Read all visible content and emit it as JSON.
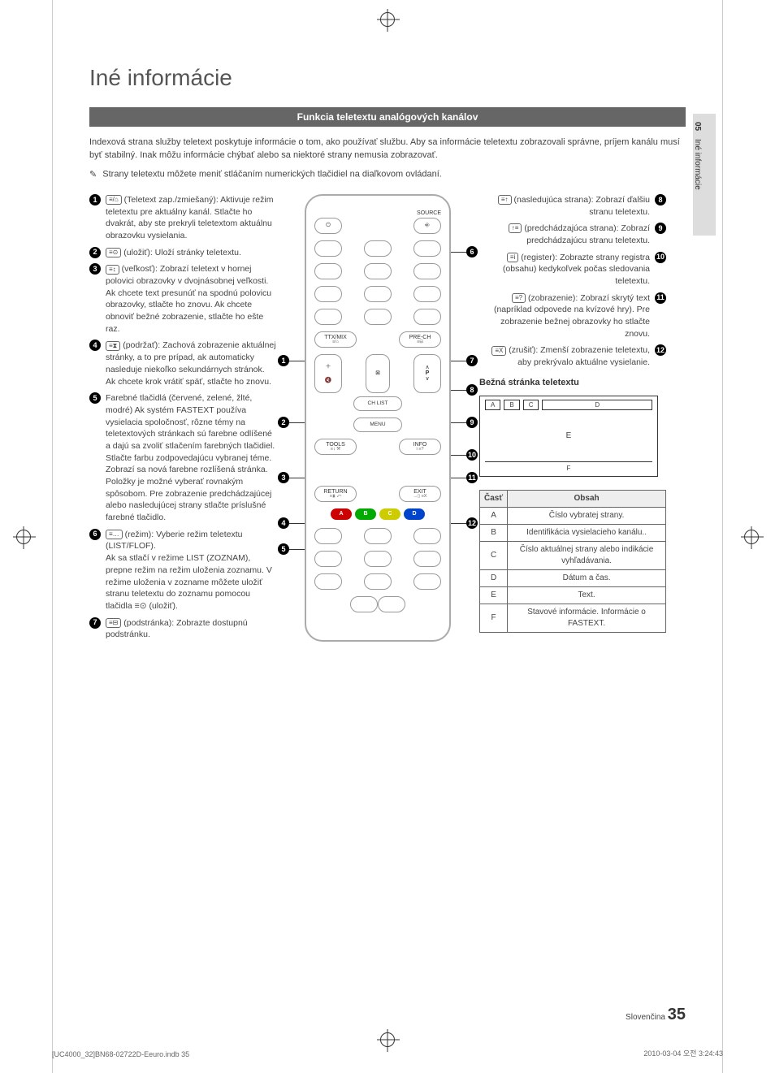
{
  "print": {
    "file": "[UC4000_32]BN68-02722D-Eeuro.indb   35",
    "date": "2010-03-04   오전 3:24:43"
  },
  "sidetab": {
    "num": "05",
    "label": "Iné informácie"
  },
  "title": "Iné informácie",
  "section_header": "Funkcia teletextu analógových kanálov",
  "intro": "Indexová strana služby teletext poskytuje informácie o tom, ako používať službu. Aby sa informácie teletextu zobrazovali správne, príjem kanálu musí byť stabilný. Inak môžu informácie chýbať alebo sa niektoré strany nemusia zobrazovať.",
  "note": "Strany teletextu môžete meniť stláčaním numerických tlačidiel na diaľkovom ovládaní.",
  "left_items": [
    {
      "n": "1",
      "icon": "≡/⌂",
      "txt": "(Teletext zap./zmiešaný): Aktivuje režim teletextu pre aktuálny kanál. Stlačte ho dvakrát, aby ste prekryli teletextom aktuálnu obrazovku vysielania."
    },
    {
      "n": "2",
      "icon": "≡⊙",
      "txt": "(uložiť): Uloží stránky teletextu."
    },
    {
      "n": "3",
      "icon": "≡↕",
      "txt": "(veľkosť): Zobrazí teletext v hornej polovici obrazovky v dvojnásobnej veľkosti. Ak chcete text presunúť na spodnú polovicu obrazovky, stlačte ho znovu. Ak chcete obnoviť bežné zobrazenie, stlačte ho ešte raz."
    },
    {
      "n": "4",
      "icon": "≡⧗",
      "txt": "(podržať): Zachová zobrazenie aktuálnej stránky, a to pre prípad, ak automaticky nasleduje niekoľko sekundárnych stránok. Ak chcete krok vrátiť späť, stlačte ho znovu."
    },
    {
      "n": "5",
      "icon": "",
      "txt": "Farebné tlačidlá (červené, zelené, žlté, modré) Ak systém FASTEXT používa vysielacia spoločnosť, rôzne témy na teletextových stránkach sú farebne odlíšené a dajú sa zvoliť stlačením farebných tlačidiel. Stlačte farbu zodpovedajúcu vybranej téme. Zobrazí sa nová farebne rozlíšená stránka. Položky je možné vyberať rovnakým spôsobom. Pre zobrazenie predchádzajúcej alebo nasledujúcej strany stlačte príslušné farebné tlačidlo."
    },
    {
      "n": "6",
      "icon": "≡…",
      "txt": "(režim): Vyberie režim teletextu (LIST/FLOF).\nAk sa stlačí v režime LIST (ZOZNAM), prepne režim na režim uloženia zoznamu. V režime uloženia v zozname môžete uložiť stranu teletextu do zoznamu pomocou tlačidla ≡⊙ (uložiť)."
    },
    {
      "n": "7",
      "icon": "≡⊟",
      "txt": "(podstránka): Zobrazte dostupnú podstránku."
    }
  ],
  "right_items": [
    {
      "n": "8",
      "icon": "≡↑",
      "txt": "(nasledujúca strana): Zobrazí ďalšiu stranu teletextu."
    },
    {
      "n": "9",
      "icon": "↑≡",
      "txt": "(predchádzajúca strana): Zobrazí predchádzajúcu stranu teletextu."
    },
    {
      "n": "10",
      "icon": "≡i",
      "txt": "(register): Zobrazte strany registra (obsahu) kedykoľvek počas sledovania teletextu."
    },
    {
      "n": "11",
      "icon": "≡?",
      "txt": "(zobrazenie): Zobrazí skrytý text (napríklad odpovede na kvízové hry). Pre zobrazenie bežnej obrazovky ho stlačte znovu."
    },
    {
      "n": "12",
      "icon": "≡X",
      "txt": "(zrušiť): Zmenší zobrazenie teletextu, aby prekrývalo aktuálne vysielanie."
    }
  ],
  "remote": {
    "source": "SOURCE",
    "ttx": "TTX/MIX",
    "prech": "PRE-CH",
    "chlist": "CH LIST",
    "menu": "MENU",
    "tools": "TOOLS",
    "info": "INFO",
    "return": "RETURN",
    "exit": "EXIT",
    "colors": [
      "A",
      "B",
      "C",
      "D"
    ],
    "p": "P"
  },
  "normal_page_heading": "Bežná stránka teletextu",
  "diagram": {
    "a": "A",
    "b": "B",
    "c": "C",
    "d": "D",
    "e": "E",
    "f": "F"
  },
  "table": {
    "head": [
      "Časť",
      "Obsah"
    ],
    "rows": [
      [
        "A",
        "Číslo vybratej strany."
      ],
      [
        "B",
        "Identifikácia vysielacieho kanálu.."
      ],
      [
        "C",
        "Číslo aktuálnej strany alebo indikácie vyhľadávania."
      ],
      [
        "D",
        "Dátum a čas."
      ],
      [
        "E",
        "Text."
      ],
      [
        "F",
        "Stavové informácie. Informácie o FASTEXT."
      ]
    ]
  },
  "footer": {
    "lang": "Slovenčina",
    "page": "35"
  }
}
